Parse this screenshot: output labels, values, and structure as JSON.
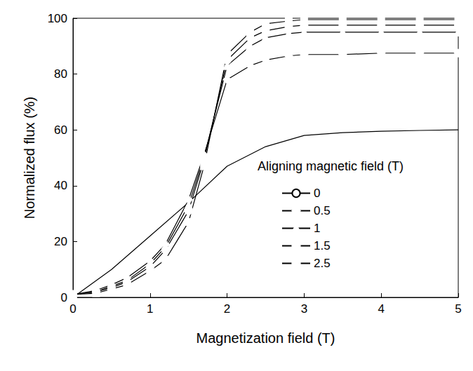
{
  "chart_data": {
    "type": "line",
    "x_label": "Magnetization field (T)",
    "y_label": "Normalized flux (%)",
    "legend_title": "Aligning magnetic field (T)",
    "legend": "right",
    "grid": false,
    "xlim": [
      0,
      5
    ],
    "xticks": [
      0,
      1,
      2,
      3,
      4,
      5
    ],
    "ylim": [
      0,
      100
    ],
    "yticks": [
      0,
      20,
      40,
      60,
      80,
      100
    ],
    "series": [
      {
        "name": "0",
        "color": "#000000",
        "marker": "none",
        "line_style": "solid",
        "x": [
          0,
          0.5,
          1,
          1.5,
          2,
          2.5,
          3,
          3.5,
          4,
          4.5,
          5
        ],
        "values": [
          0,
          10,
          22,
          34,
          47,
          54,
          58,
          59,
          59.5,
          59.8,
          60
        ]
      },
      {
        "name": "0.5",
        "color": "#000000",
        "marker": "diamond",
        "line_style": "solid",
        "x": [
          0,
          0.3,
          0.5,
          0.7,
          1,
          1.2,
          1.5,
          1.7,
          2,
          2.3,
          2.5,
          2.8,
          3,
          3.5,
          4,
          4.5,
          5
        ],
        "values": [
          1,
          2.5,
          4.5,
          7,
          13,
          19,
          35,
          51,
          78,
          83,
          85,
          86.5,
          87,
          87,
          87.5,
          87.5,
          87.5
        ]
      },
      {
        "name": "1",
        "color": "#000000",
        "marker": "triangle",
        "line_style": "solid",
        "x": [
          0,
          0.3,
          0.5,
          0.7,
          1,
          1.2,
          1.5,
          1.7,
          2,
          2.3,
          2.5,
          2.8,
          3,
          3.5,
          4,
          4.5,
          5
        ],
        "values": [
          1,
          2,
          4,
          6,
          12,
          18,
          33,
          50,
          83,
          90,
          93,
          94.5,
          95,
          95,
          95,
          95,
          95
        ]
      },
      {
        "name": "1.5",
        "color": "#000000",
        "marker": "circle",
        "line_style": "solid",
        "x": [
          0,
          0.3,
          0.5,
          0.7,
          1,
          1.2,
          1.5,
          1.7,
          2,
          2.3,
          2.5,
          2.8,
          3,
          3.5,
          4,
          4.5,
          5
        ],
        "values": [
          1,
          2,
          3.5,
          5.5,
          11,
          17,
          31,
          49,
          85,
          93,
          95.5,
          97,
          97.5,
          97.5,
          97.5,
          97.5,
          97.5
        ]
      },
      {
        "name": "2.5",
        "color": "#000000",
        "marker": "square",
        "line_style": "solid",
        "x": [
          0,
          0.3,
          0.5,
          0.7,
          1,
          1.2,
          1.5,
          1.7,
          2,
          2.3,
          2.5,
          2.8,
          3,
          3.5,
          4,
          4.5,
          5
        ],
        "values": [
          1,
          1.5,
          3,
          4.5,
          9.5,
          13.5,
          27,
          47,
          87,
          95,
          98,
          99,
          99.5,
          99.5,
          99.5,
          99.5,
          99.5
        ]
      }
    ]
  }
}
